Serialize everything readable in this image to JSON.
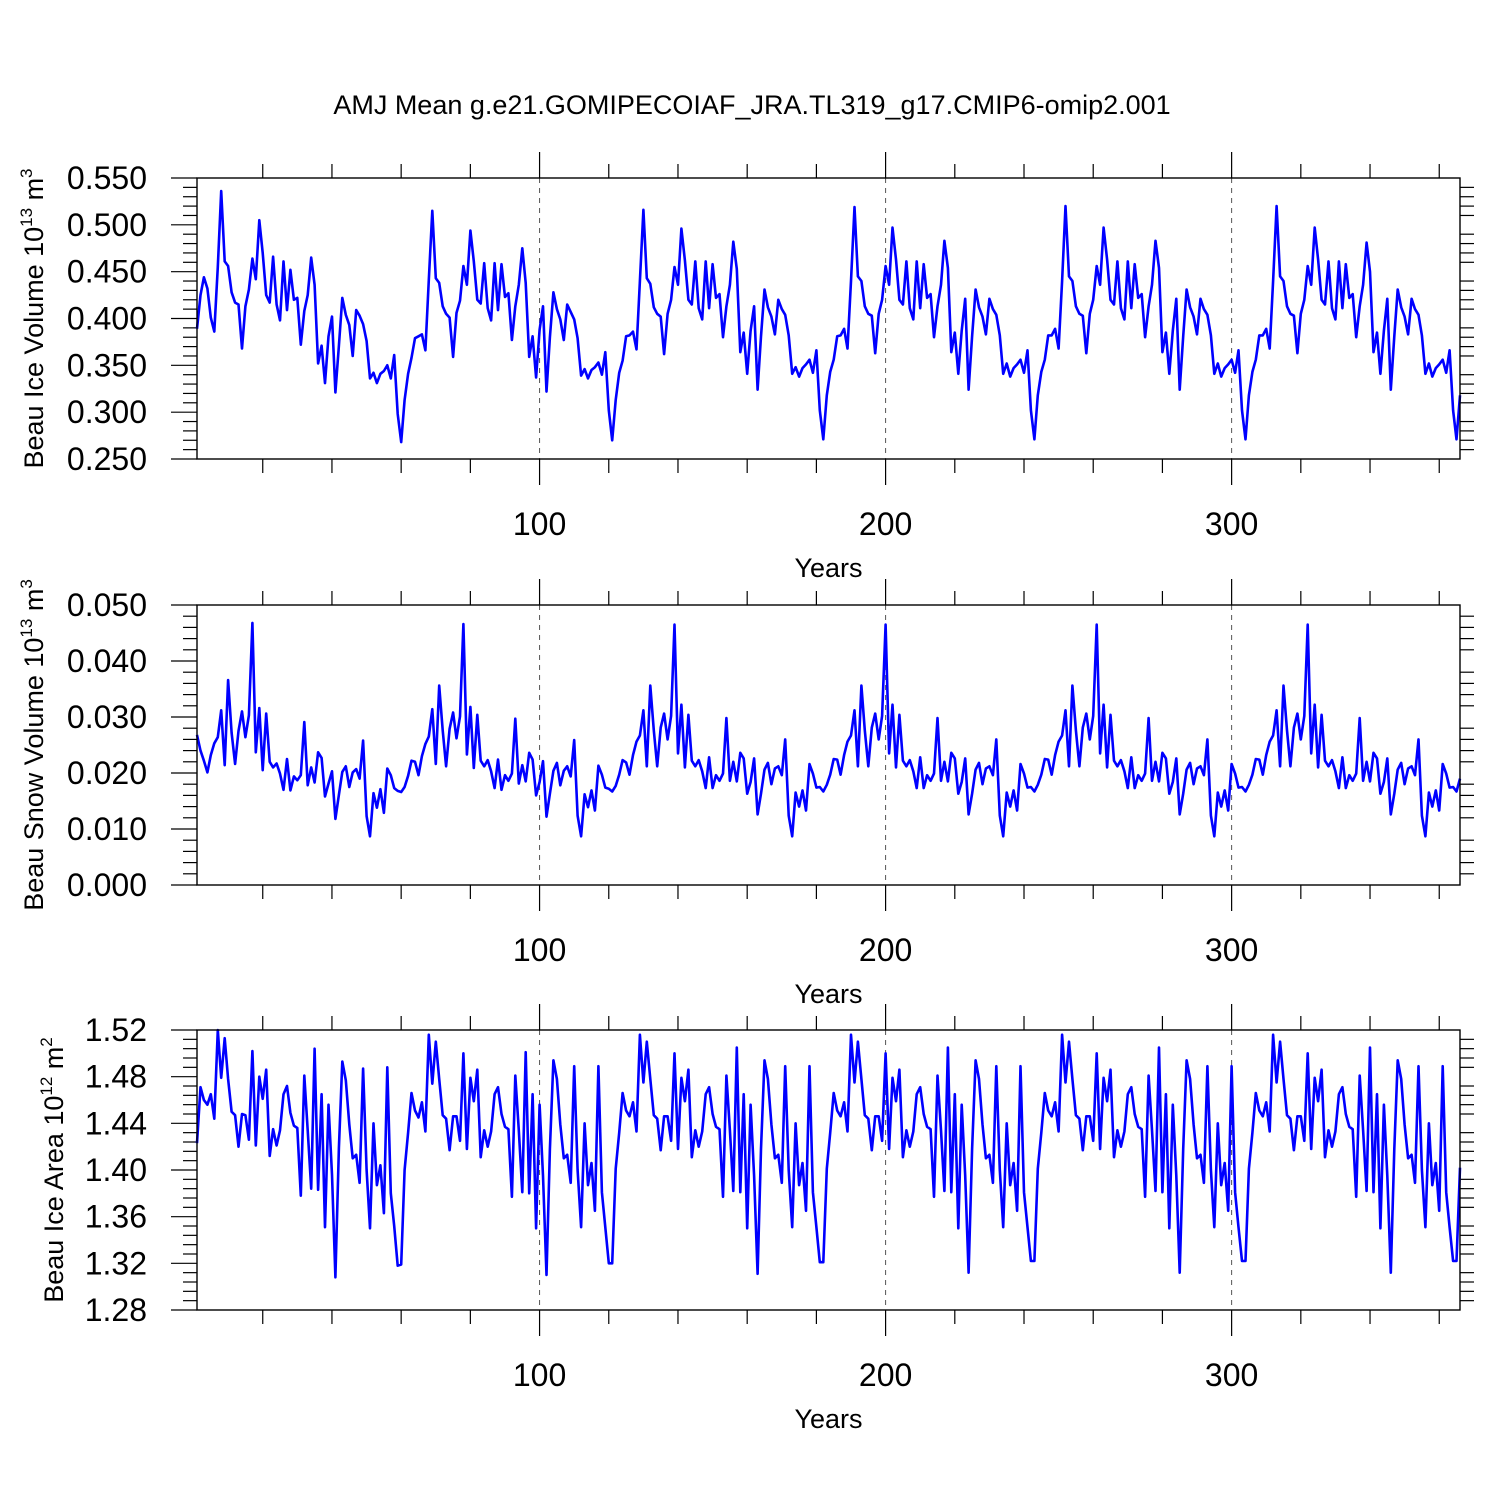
{
  "title": "AMJ Mean g.e21.GOMIPECOIAF_JRA.TL319_g17.CMIP6-omip2.001",
  "line_color": "#0000ff",
  "cycle_years": 61,
  "chart_data": [
    {
      "type": "line",
      "name": "beau-ice-volume",
      "ylabel_main": "Beau Ice Volume 10",
      "ylabel_exp": "13",
      "ylabel_unit": "m",
      "ylabel_unit_exp": "3",
      "xlabel": "Years",
      "xlim": [
        1,
        366
      ],
      "ylim": [
        0.25,
        0.55
      ],
      "x_ticks": [
        100,
        200,
        300
      ],
      "x_tick_labels": [
        "100",
        "200",
        "300"
      ],
      "y_ticks": [
        0.25,
        0.3,
        0.35,
        0.4,
        0.45,
        0.5,
        0.55
      ],
      "y_tick_labels": [
        "0.250",
        "0.300",
        "0.350",
        "0.400",
        "0.450",
        "0.500",
        "0.550"
      ],
      "values": [
        0.389,
        0.425,
        0.444,
        0.432,
        0.401,
        0.386,
        0.455,
        0.536,
        0.461,
        0.456,
        0.428,
        0.417,
        0.415,
        0.368,
        0.413,
        0.431,
        0.464,
        0.442,
        0.505,
        0.47,
        0.425,
        0.417,
        0.466,
        0.415,
        0.398,
        0.461,
        0.409,
        0.452,
        0.42,
        0.422,
        0.372,
        0.408,
        0.425,
        0.465,
        0.436,
        0.352,
        0.371,
        0.331,
        0.381,
        0.402,
        0.321,
        0.371,
        0.422,
        0.404,
        0.393,
        0.36,
        0.409,
        0.403,
        0.394,
        0.376,
        0.336,
        0.342,
        0.331,
        0.341,
        0.344,
        0.35,
        0.336,
        0.361,
        0.298,
        0.268,
        0.313,
        0.341,
        0.358,
        0.379,
        0.381,
        0.383,
        0.366,
        0.441,
        0.515,
        0.443,
        0.438,
        0.413,
        0.405,
        0.401,
        0.359,
        0.406,
        0.419,
        0.456,
        0.436,
        0.494,
        0.461,
        0.42,
        0.416,
        0.459,
        0.411,
        0.398,
        0.459,
        0.409,
        0.458,
        0.423,
        0.427,
        0.377,
        0.413,
        0.436,
        0.475,
        0.438,
        0.359,
        0.381,
        0.337,
        0.388,
        0.413,
        0.322,
        0.38,
        0.428,
        0.41,
        0.399,
        0.377,
        0.415,
        0.407,
        0.399,
        0.379,
        0.339,
        0.346,
        0.336,
        0.345,
        0.348,
        0.353,
        0.34,
        0.364,
        0.302,
        0.27,
        0.313,
        0.342,
        0.355,
        0.381,
        0.382,
        0.386,
        0.367,
        0.44,
        0.516,
        0.443,
        0.437,
        0.412,
        0.405,
        0.402,
        0.362,
        0.405,
        0.42,
        0.455,
        0.436,
        0.496,
        0.462,
        0.42,
        0.415,
        0.461,
        0.411,
        0.399,
        0.461,
        0.411,
        0.458,
        0.422,
        0.426,
        0.38,
        0.413,
        0.436,
        0.482,
        0.453,
        0.364,
        0.385,
        0.341,
        0.387,
        0.413,
        0.324,
        0.381,
        0.431,
        0.412,
        0.402,
        0.383,
        0.42,
        0.41,
        0.404,
        0.382,
        0.341,
        0.348,
        0.338,
        0.347,
        0.351,
        0.356,
        0.342,
        0.366,
        0.302,
        0.271,
        0.318,
        0.343,
        0.356,
        0.381,
        0.382,
        0.389,
        0.368,
        0.44,
        0.519,
        0.445,
        0.44,
        0.413,
        0.405,
        0.403,
        0.363,
        0.405,
        0.42,
        0.456,
        0.436,
        0.497,
        0.463,
        0.42,
        0.415,
        0.461,
        0.411,
        0.399,
        0.461,
        0.411,
        0.458,
        0.422,
        0.426,
        0.38,
        0.413,
        0.436,
        0.483,
        0.454,
        0.364,
        0.385,
        0.341,
        0.387,
        0.421,
        0.324,
        0.381,
        0.431,
        0.412,
        0.402,
        0.383,
        0.421,
        0.41,
        0.404,
        0.382,
        0.341,
        0.352,
        0.338,
        0.347,
        0.351,
        0.356,
        0.342,
        0.366,
        0.302,
        0.271,
        0.318,
        0.343,
        0.356,
        0.382,
        0.382,
        0.389,
        0.368,
        0.44,
        0.52,
        0.445,
        0.44,
        0.413,
        0.405,
        0.403,
        0.363,
        0.405,
        0.42,
        0.456,
        0.436,
        0.497,
        0.463,
        0.42,
        0.415,
        0.461,
        0.411,
        0.399,
        0.461,
        0.411,
        0.458,
        0.422,
        0.426,
        0.38,
        0.413,
        0.436,
        0.483,
        0.454,
        0.364,
        0.385,
        0.341,
        0.387,
        0.421,
        0.324,
        0.381,
        0.431,
        0.412,
        0.402,
        0.383,
        0.421,
        0.41,
        0.404,
        0.382,
        0.341,
        0.352,
        0.338,
        0.347,
        0.351,
        0.356,
        0.342,
        0.366,
        0.302,
        0.271,
        0.318,
        0.343,
        0.356,
        0.382,
        0.382,
        0.389,
        0.368,
        0.44,
        0.52,
        0.445,
        0.44,
        0.413,
        0.405,
        0.403,
        0.363,
        0.405,
        0.42,
        0.456,
        0.436,
        0.497,
        0.463,
        0.42,
        0.415,
        0.461,
        0.411,
        0.399,
        0.461,
        0.411,
        0.458,
        0.422,
        0.426,
        0.38,
        0.413,
        0.436,
        0.481,
        0.45,
        0.364,
        0.385,
        0.341,
        0.387,
        0.421,
        0.324,
        0.381,
        0.431,
        0.412,
        0.402,
        0.383,
        0.421,
        0.41,
        0.404,
        0.382,
        0.341,
        0.352,
        0.338,
        0.347,
        0.351,
        0.356,
        0.342,
        0.366,
        0.302,
        0.271,
        0.318
      ]
    },
    {
      "type": "line",
      "name": "beau-snow-volume",
      "ylabel_main": "Beau Snow Volume 10",
      "ylabel_exp": "13",
      "ylabel_unit": "m",
      "ylabel_unit_exp": "3",
      "xlabel": "Years",
      "xlim": [
        1,
        366
      ],
      "ylim": [
        0.0,
        0.05
      ],
      "x_ticks": [
        100,
        200,
        300
      ],
      "x_tick_labels": [
        "100",
        "200",
        "300"
      ],
      "y_ticks": [
        0.0,
        0.01,
        0.02,
        0.03,
        0.04,
        0.05
      ],
      "y_tick_labels": [
        "0.000",
        "0.010",
        "0.020",
        "0.030",
        "0.040",
        "0.050"
      ],
      "values": [
        0.0268,
        0.024,
        0.0222,
        0.0201,
        0.0232,
        0.0253,
        0.0264,
        0.0312,
        0.0214,
        0.0366,
        0.0272,
        0.0216,
        0.0275,
        0.031,
        0.0264,
        0.0303,
        0.0468,
        0.0237,
        0.0316,
        0.0205,
        0.0306,
        0.022,
        0.021,
        0.0217,
        0.0199,
        0.017,
        0.0225,
        0.0169,
        0.0194,
        0.0187,
        0.0196,
        0.0291,
        0.0178,
        0.021,
        0.0183,
        0.0237,
        0.0227,
        0.0158,
        0.0181,
        0.0203,
        0.0118,
        0.0161,
        0.0202,
        0.0212,
        0.0175,
        0.0201,
        0.0207,
        0.019,
        0.0258,
        0.0123,
        0.0087,
        0.0164,
        0.0138,
        0.0171,
        0.0129,
        0.0208,
        0.0196,
        0.0173,
        0.0168,
        0.0166,
        0.0175,
        0.0195,
        0.0222,
        0.022,
        0.0196,
        0.023,
        0.0252,
        0.0265,
        0.0314,
        0.0216,
        0.0356,
        0.0276,
        0.0212,
        0.0279,
        0.0308,
        0.0262,
        0.0301,
        0.0466,
        0.0233,
        0.0318,
        0.0209,
        0.0304,
        0.0222,
        0.0212,
        0.0223,
        0.0203,
        0.0173,
        0.0224,
        0.017,
        0.0196,
        0.0186,
        0.0199,
        0.0297,
        0.0181,
        0.0214,
        0.0185,
        0.0236,
        0.0224,
        0.016,
        0.0184,
        0.0221,
        0.0122,
        0.0163,
        0.0204,
        0.0218,
        0.0178,
        0.0204,
        0.0212,
        0.0194,
        0.0259,
        0.0124,
        0.0087,
        0.0162,
        0.0139,
        0.0169,
        0.0133,
        0.0213,
        0.0197,
        0.0174,
        0.0172,
        0.0167,
        0.0177,
        0.0197,
        0.0223,
        0.0219,
        0.0197,
        0.0232,
        0.0256,
        0.0267,
        0.0312,
        0.0212,
        0.0356,
        0.0276,
        0.0212,
        0.0281,
        0.0306,
        0.026,
        0.0302,
        0.0465,
        0.0235,
        0.0322,
        0.021,
        0.0304,
        0.0222,
        0.0212,
        0.0223,
        0.0203,
        0.0173,
        0.0228,
        0.0173,
        0.0196,
        0.0186,
        0.0199,
        0.0298,
        0.0186,
        0.022,
        0.0185,
        0.0236,
        0.0226,
        0.0163,
        0.0184,
        0.0226,
        0.0126,
        0.0163,
        0.0206,
        0.0218,
        0.018,
        0.0208,
        0.0212,
        0.0196,
        0.026,
        0.0124,
        0.0087,
        0.0165,
        0.014,
        0.0169,
        0.0133,
        0.0216,
        0.0199,
        0.0174,
        0.0175,
        0.0167,
        0.0179,
        0.0197,
        0.0225,
        0.0224,
        0.0197,
        0.0232,
        0.0256,
        0.0267,
        0.0312,
        0.0212,
        0.0356,
        0.0276,
        0.0212,
        0.0281,
        0.0306,
        0.026,
        0.0302,
        0.0465,
        0.0235,
        0.0322,
        0.021,
        0.0304,
        0.0222,
        0.0212,
        0.0223,
        0.0203,
        0.0173,
        0.0228,
        0.0173,
        0.0196,
        0.0186,
        0.0199,
        0.0298,
        0.0186,
        0.022,
        0.0185,
        0.0236,
        0.0226,
        0.0163,
        0.0184,
        0.0226,
        0.0126,
        0.0163,
        0.0206,
        0.0218,
        0.018,
        0.0208,
        0.0212,
        0.0196,
        0.026,
        0.0124,
        0.0087,
        0.0165,
        0.014,
        0.0169,
        0.0133,
        0.0216,
        0.0199,
        0.0174,
        0.0175,
        0.0167,
        0.0179,
        0.0197,
        0.0225,
        0.0224,
        0.0197,
        0.0232,
        0.0256,
        0.0267,
        0.0312,
        0.0212,
        0.0356,
        0.0276,
        0.0212,
        0.0281,
        0.0306,
        0.026,
        0.0302,
        0.0465,
        0.0235,
        0.0322,
        0.021,
        0.0304,
        0.0222,
        0.0212,
        0.0223,
        0.0203,
        0.0173,
        0.0228,
        0.0173,
        0.0196,
        0.0186,
        0.0199,
        0.0298,
        0.0186,
        0.022,
        0.0185,
        0.0236,
        0.0226,
        0.0163,
        0.0184,
        0.0226,
        0.0126,
        0.0163,
        0.0206,
        0.0218,
        0.018,
        0.0208,
        0.0212,
        0.0196,
        0.026,
        0.0124,
        0.0087,
        0.0165,
        0.014,
        0.0169,
        0.0133,
        0.0216,
        0.0199,
        0.0174,
        0.0175,
        0.0167,
        0.0179,
        0.0197,
        0.0225,
        0.0224,
        0.0197,
        0.0232,
        0.0256,
        0.0267,
        0.0312,
        0.0212,
        0.0356,
        0.0276,
        0.0212,
        0.0281,
        0.0306,
        0.026,
        0.0302,
        0.0465,
        0.0235,
        0.0322,
        0.021,
        0.0304,
        0.0222,
        0.0212,
        0.0223,
        0.0203,
        0.0173,
        0.0228,
        0.0173,
        0.0196,
        0.0186,
        0.0199,
        0.0298,
        0.0186,
        0.022,
        0.0185,
        0.0236,
        0.0226,
        0.0163,
        0.0184,
        0.0226,
        0.0126,
        0.0163,
        0.0206,
        0.0218,
        0.018,
        0.0208,
        0.0212,
        0.0196,
        0.026,
        0.0124,
        0.0087,
        0.0165,
        0.014,
        0.0169,
        0.0133,
        0.0216,
        0.0199,
        0.0174,
        0.0175,
        0.0167,
        0.019
      ]
    },
    {
      "type": "line",
      "name": "beau-ice-area",
      "ylabel_main": "Beau Ice Area 10",
      "ylabel_exp": "12",
      "ylabel_unit": "m",
      "ylabel_unit_exp": "2",
      "xlabel": "Years",
      "xlim": [
        1,
        366
      ],
      "ylim": [
        1.28,
        1.52
      ],
      "x_ticks": [
        100,
        200,
        300
      ],
      "x_tick_labels": [
        "100",
        "200",
        "300"
      ],
      "y_ticks": [
        1.28,
        1.32,
        1.36,
        1.4,
        1.44,
        1.48,
        1.52
      ],
      "y_tick_labels": [
        "1.28",
        "1.32",
        "1.36",
        "1.40",
        "1.44",
        "1.48",
        "1.52"
      ],
      "values": [
        1.423,
        1.471,
        1.46,
        1.456,
        1.465,
        1.444,
        1.52,
        1.479,
        1.513,
        1.478,
        1.45,
        1.447,
        1.42,
        1.448,
        1.447,
        1.426,
        1.502,
        1.421,
        1.48,
        1.461,
        1.486,
        1.412,
        1.435,
        1.421,
        1.434,
        1.465,
        1.472,
        1.449,
        1.438,
        1.436,
        1.378,
        1.481,
        1.434,
        1.384,
        1.504,
        1.383,
        1.465,
        1.351,
        1.456,
        1.396,
        1.308,
        1.419,
        1.493,
        1.477,
        1.439,
        1.41,
        1.413,
        1.389,
        1.487,
        1.4,
        1.35,
        1.44,
        1.387,
        1.404,
        1.363,
        1.488,
        1.38,
        1.352,
        1.318,
        1.319,
        1.4,
        1.432,
        1.466,
        1.451,
        1.445,
        1.458,
        1.433,
        1.516,
        1.474,
        1.51,
        1.478,
        1.447,
        1.444,
        1.417,
        1.446,
        1.446,
        1.425,
        1.5,
        1.418,
        1.479,
        1.459,
        1.486,
        1.411,
        1.434,
        1.42,
        1.433,
        1.465,
        1.471,
        1.448,
        1.437,
        1.435,
        1.377,
        1.481,
        1.434,
        1.381,
        1.501,
        1.38,
        1.465,
        1.35,
        1.456,
        1.395,
        1.31,
        1.418,
        1.494,
        1.478,
        1.439,
        1.41,
        1.413,
        1.389,
        1.489,
        1.4,
        1.351,
        1.44,
        1.387,
        1.406,
        1.365,
        1.489,
        1.381,
        1.351,
        1.32,
        1.32,
        1.401,
        1.432,
        1.466,
        1.451,
        1.446,
        1.458,
        1.433,
        1.516,
        1.475,
        1.51,
        1.478,
        1.447,
        1.444,
        1.417,
        1.446,
        1.446,
        1.425,
        1.5,
        1.418,
        1.479,
        1.459,
        1.486,
        1.411,
        1.434,
        1.42,
        1.433,
        1.465,
        1.471,
        1.448,
        1.437,
        1.435,
        1.377,
        1.481,
        1.434,
        1.382,
        1.505,
        1.381,
        1.465,
        1.35,
        1.456,
        1.395,
        1.311,
        1.418,
        1.494,
        1.478,
        1.439,
        1.41,
        1.413,
        1.389,
        1.489,
        1.4,
        1.351,
        1.44,
        1.387,
        1.406,
        1.365,
        1.489,
        1.381,
        1.351,
        1.321,
        1.321,
        1.401,
        1.432,
        1.466,
        1.451,
        1.446,
        1.458,
        1.433,
        1.516,
        1.475,
        1.51,
        1.478,
        1.447,
        1.444,
        1.417,
        1.446,
        1.446,
        1.425,
        1.5,
        1.418,
        1.479,
        1.459,
        1.486,
        1.411,
        1.434,
        1.42,
        1.433,
        1.465,
        1.471,
        1.448,
        1.437,
        1.435,
        1.377,
        1.481,
        1.434,
        1.382,
        1.505,
        1.381,
        1.465,
        1.35,
        1.456,
        1.395,
        1.312,
        1.418,
        1.494,
        1.478,
        1.439,
        1.41,
        1.413,
        1.389,
        1.489,
        1.4,
        1.351,
        1.44,
        1.387,
        1.406,
        1.365,
        1.489,
        1.381,
        1.351,
        1.322,
        1.322,
        1.401,
        1.432,
        1.466,
        1.451,
        1.446,
        1.458,
        1.433,
        1.516,
        1.475,
        1.51,
        1.478,
        1.447,
        1.444,
        1.417,
        1.446,
        1.446,
        1.425,
        1.5,
        1.418,
        1.479,
        1.459,
        1.486,
        1.411,
        1.434,
        1.42,
        1.433,
        1.465,
        1.471,
        1.448,
        1.437,
        1.435,
        1.377,
        1.481,
        1.434,
        1.382,
        1.505,
        1.381,
        1.465,
        1.35,
        1.456,
        1.395,
        1.312,
        1.418,
        1.494,
        1.478,
        1.439,
        1.41,
        1.413,
        1.389,
        1.489,
        1.4,
        1.351,
        1.44,
        1.387,
        1.406,
        1.365,
        1.489,
        1.381,
        1.351,
        1.322,
        1.322,
        1.401,
        1.432,
        1.466,
        1.451,
        1.446,
        1.458,
        1.433,
        1.516,
        1.475,
        1.51,
        1.478,
        1.447,
        1.444,
        1.417,
        1.446,
        1.446,
        1.425,
        1.5,
        1.418,
        1.479,
        1.459,
        1.486,
        1.411,
        1.434,
        1.42,
        1.433,
        1.465,
        1.471,
        1.448,
        1.437,
        1.435,
        1.377,
        1.481,
        1.434,
        1.382,
        1.505,
        1.381,
        1.465,
        1.35,
        1.456,
        1.395,
        1.312,
        1.418,
        1.494,
        1.478,
        1.439,
        1.41,
        1.413,
        1.389,
        1.489,
        1.4,
        1.351,
        1.44,
        1.387,
        1.406,
        1.365,
        1.489,
        1.381,
        1.351,
        1.322,
        1.322,
        1.402
      ]
    }
  ]
}
